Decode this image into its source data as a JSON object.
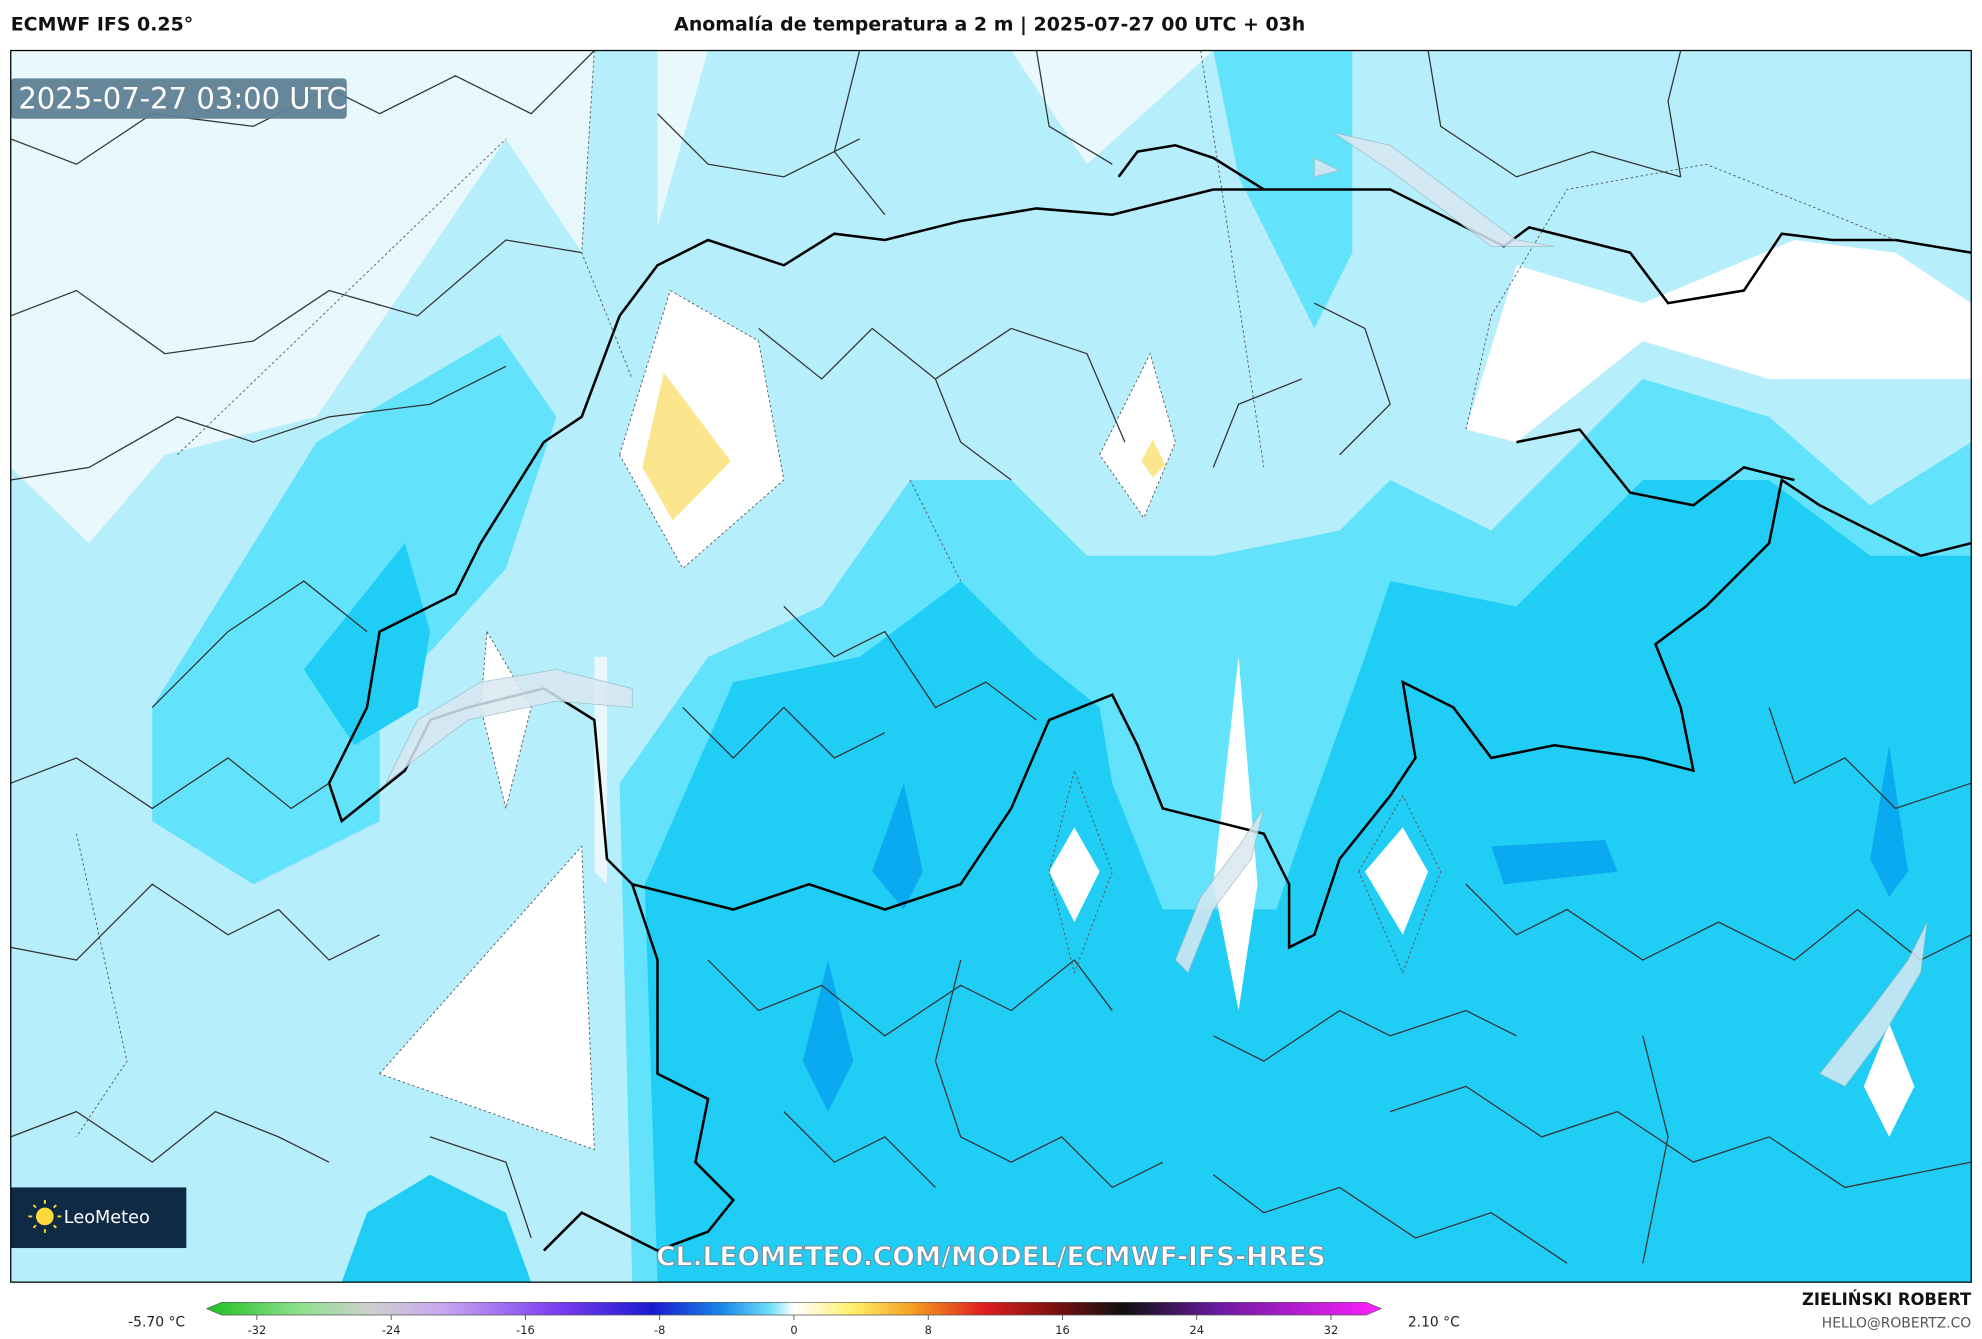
{
  "header": {
    "model": "ECMWF IFS 0.25°",
    "title": "Anomalía de temperatura a 2 m | 2025-07-27 00 UTC + 03h"
  },
  "map": {
    "timestamp": "2025-07-27 03:00 UTC",
    "logo": "LeoMeteo",
    "watermark": "CL.LEOMETEO.COM/MODEL/ECMWF-IFS-HRES"
  },
  "colorbar": {
    "min_label": "-5.70 °C",
    "max_label": "2.10 °C",
    "lim": [
      -35,
      35
    ],
    "ticks": [
      -32,
      -24,
      -16,
      -8,
      0,
      8,
      16,
      24,
      32
    ]
  },
  "footer": {
    "author": "ZIELIŃSKI ROBERT",
    "email": "HELLO@ROBERTZ.CO"
  }
}
